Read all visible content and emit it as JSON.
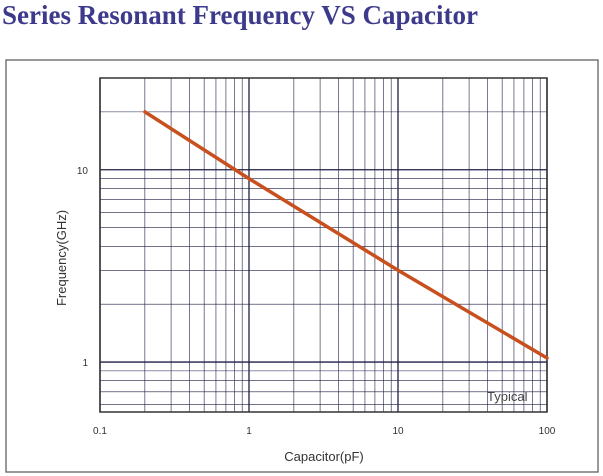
{
  "page_title": "Series Resonant Frequency VS Capacitor",
  "chart_data": {
    "type": "line",
    "xscale": "log",
    "yscale": "log",
    "xlim": [
      0.1,
      100
    ],
    "ylim": [
      0.55,
      30
    ],
    "xlabel": "Capacitor(pF)",
    "ylabel": "Frequency(GHz)",
    "x_ticks": [
      {
        "value": 0.1,
        "label": "0.1"
      },
      {
        "value": 1,
        "label": "1"
      },
      {
        "value": 10,
        "label": "10"
      },
      {
        "value": 100,
        "label": "100"
      }
    ],
    "y_ticks": [
      {
        "value": 1,
        "label": "1"
      },
      {
        "value": 10,
        "label": "10"
      }
    ],
    "grid": true,
    "annotation": "Typical",
    "series": [
      {
        "x": [
          0.2,
          1,
          10,
          100
        ],
        "y": [
          20,
          9.0,
          3.0,
          1.05
        ]
      }
    ],
    "colors": {
      "line": "#c8501e",
      "grid": "#1e1e46",
      "frame": "#333333",
      "title": "#3d3a8c"
    }
  }
}
